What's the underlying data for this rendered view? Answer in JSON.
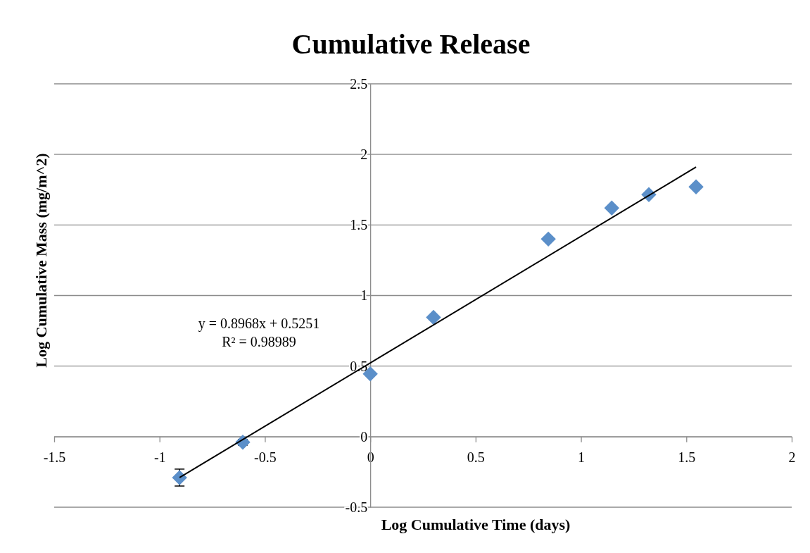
{
  "chart_data": {
    "type": "scatter",
    "title": "Cumulative Release",
    "xlabel": "Log Cumulative Time (days)",
    "ylabel": "Log Cumulative Mass (mg/m^2)",
    "xlim": [
      -1.5,
      2
    ],
    "xticks": [
      -1.5,
      -1,
      -0.5,
      0,
      0.5,
      1,
      1.5,
      2
    ],
    "ylim": [
      -0.5,
      2.5
    ],
    "yticks": [
      -0.5,
      0,
      0.5,
      1,
      1.5,
      2,
      2.5
    ],
    "grid": "y",
    "annotations": [
      "y = 0.8968x + 0.5251",
      "R² = 0.98989"
    ],
    "series": [
      {
        "marker": "diamond",
        "color": "#5b8fc9",
        "x": [
          -0.905,
          -0.605,
          0,
          0.3,
          0.845,
          1.146,
          1.322,
          1.546
        ],
        "values": [
          -0.29,
          -0.04,
          0.445,
          0.845,
          1.4,
          1.62,
          1.715,
          1.77
        ],
        "errors": [
          0.06,
          0.02,
          null,
          null,
          null,
          null,
          null,
          null
        ]
      },
      {
        "type": "line",
        "color": "#000000",
        "line_style": "solid",
        "x": [
          -0.905,
          1.546
        ],
        "values": [
          -0.29,
          1.91
        ]
      }
    ]
  }
}
